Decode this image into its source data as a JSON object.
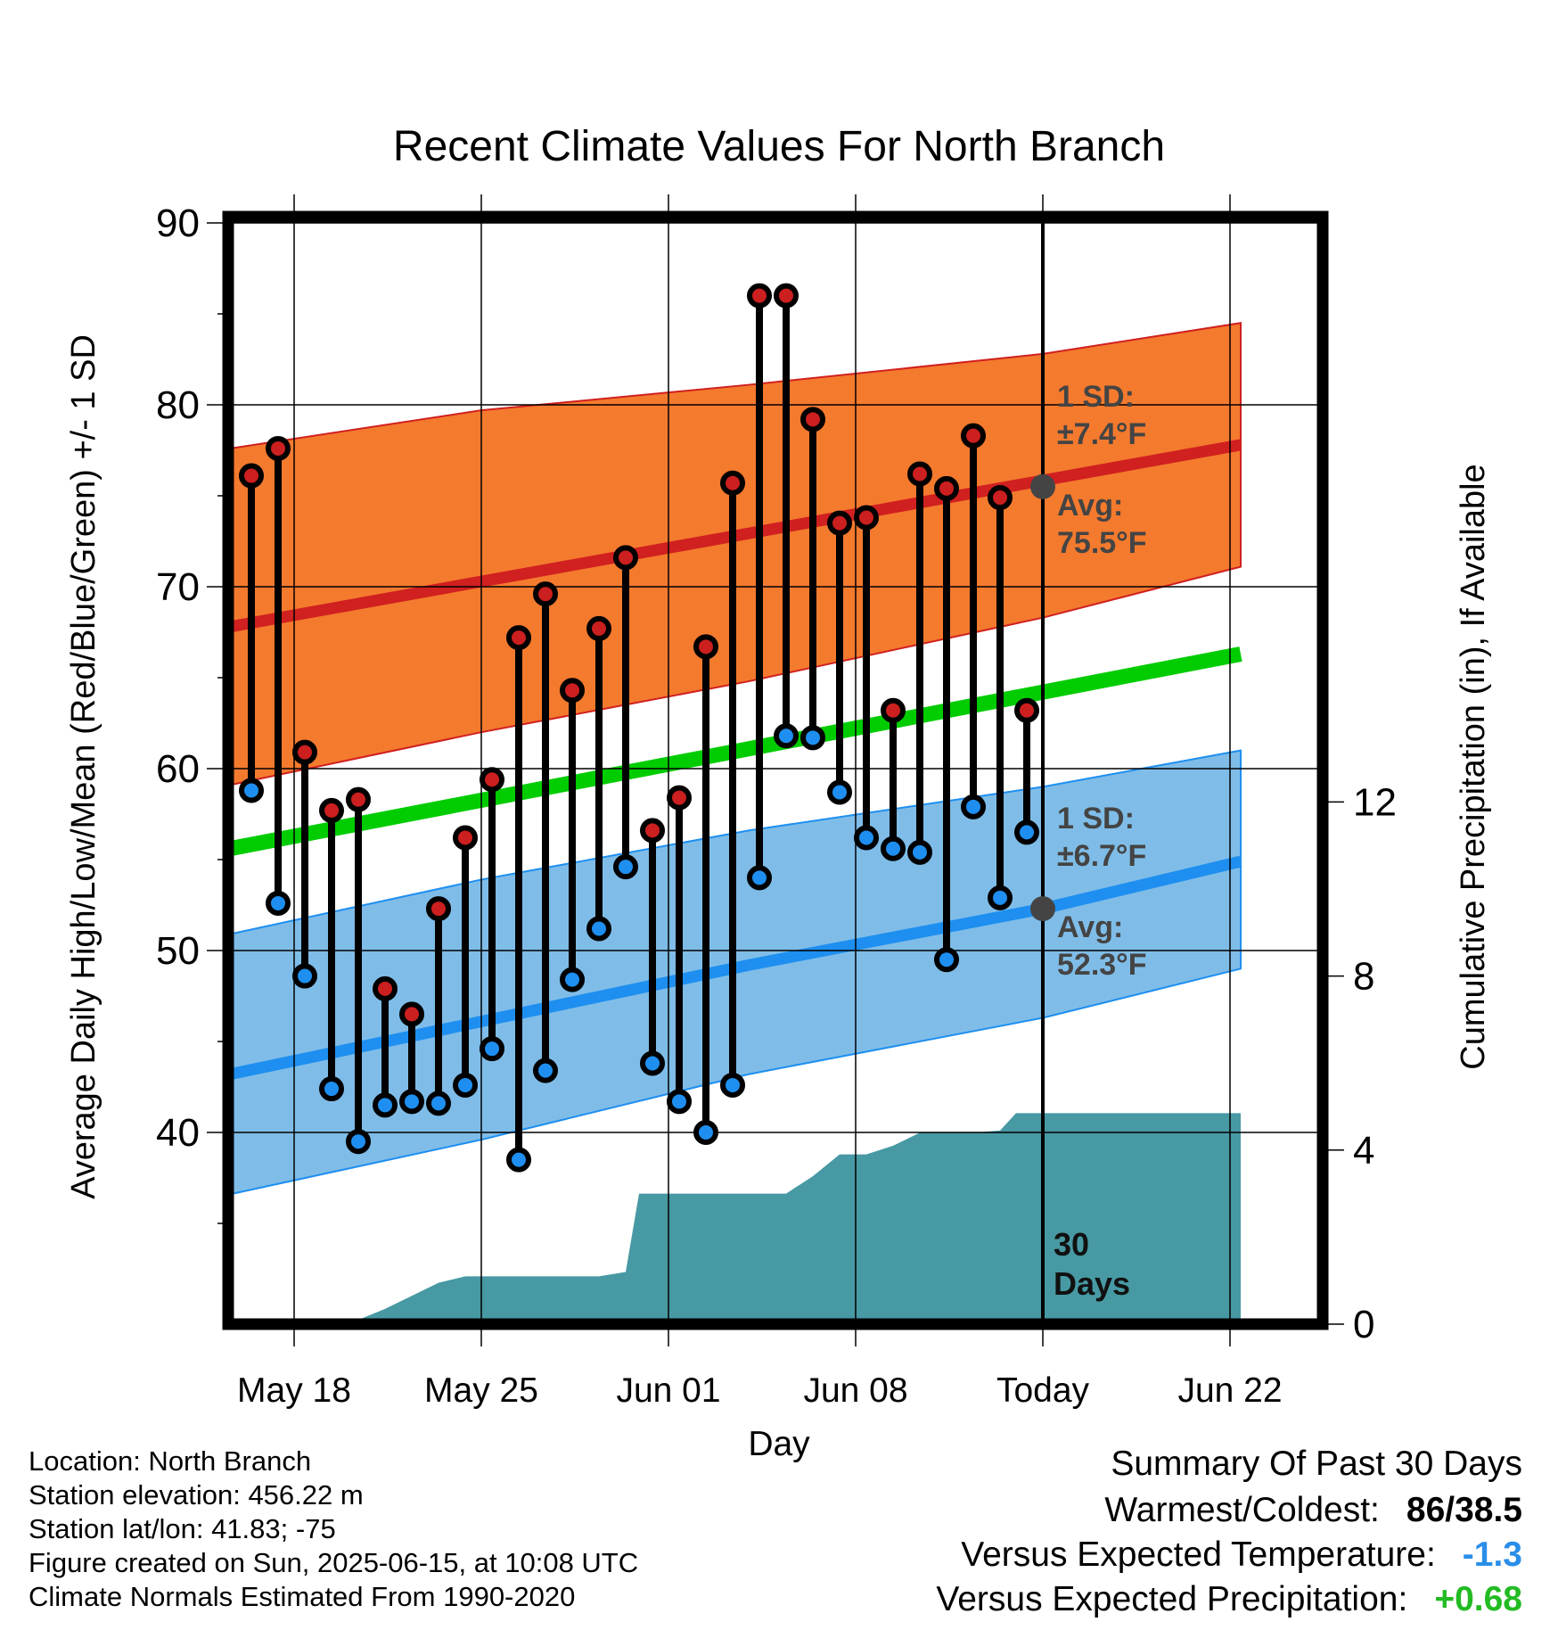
{
  "chart_data": {
    "type": "line",
    "title": "Recent Climate Values For North Branch",
    "xlabel": "Day",
    "ylabel": "Average Daily High/Low/Mean (Red/Blue/Green) +/- 1 SD",
    "y2label": "Cumulative Precipitation (in), If Available",
    "xlim": [
      0,
      38.2
    ],
    "ylim": [
      30.3,
      90.7
    ],
    "y2lim": [
      0,
      24
    ],
    "x_tick_labels": [
      "May 18",
      "May 25",
      "Jun 01",
      "Jun 08",
      "Today",
      "Jun 22"
    ],
    "x_tick_positions": [
      2.8,
      9.8,
      16.8,
      23.8,
      30.8,
      37.8
    ],
    "y_ticks": [
      40,
      50,
      60,
      70,
      80,
      90
    ],
    "y2_ticks": [
      0,
      4,
      8,
      12
    ],
    "grid": true,
    "today_marker": {
      "x": 30.8,
      "label_line1": "30",
      "label_line2": "Days"
    },
    "days": [
      1.2,
      2.2,
      3.2,
      4.2,
      5.2,
      6.2,
      7.2,
      8.2,
      9.2,
      10.2,
      11.2,
      12.2,
      13.2,
      14.2,
      15.2,
      16.2,
      17.2,
      18.2,
      19.2,
      20.2,
      21.2,
      22.2,
      23.2,
      24.2,
      25.2,
      26.2,
      27.2,
      28.2,
      29.2,
      30.2
    ],
    "series": [
      {
        "name": "Observed High",
        "color": "#cc1f1f",
        "values": [
          76.1,
          77.6,
          60.9,
          57.7,
          58.3,
          47.9,
          46.5,
          52.3,
          56.2,
          59.4,
          67.2,
          69.6,
          64.3,
          67.7,
          71.6,
          56.6,
          58.4,
          66.7,
          75.7,
          86.0,
          86.0,
          79.2,
          73.5,
          73.8,
          63.2,
          76.2,
          75.4,
          78.3,
          74.9,
          63.2
        ]
      },
      {
        "name": "Observed Low",
        "color": "#1e8ff0",
        "values": [
          58.8,
          52.6,
          48.6,
          42.4,
          39.5,
          41.5,
          41.7,
          41.6,
          42.6,
          44.6,
          38.5,
          43.4,
          48.4,
          51.2,
          54.6,
          43.8,
          41.7,
          40.0,
          42.6,
          54.0,
          61.8,
          61.7,
          58.7,
          56.2,
          55.6,
          55.4,
          49.5,
          57.9,
          52.9,
          56.5
        ]
      }
    ],
    "normals": {
      "high_avg": [
        [
          0.4,
          67.8
        ],
        [
          38.2,
          77.8
        ]
      ],
      "high_upper": [
        [
          0.4,
          77.6
        ],
        [
          9.8,
          79.7
        ],
        [
          19.8,
          81.1
        ],
        [
          30.8,
          82.8
        ],
        [
          38.2,
          84.5
        ]
      ],
      "high_lower": [
        [
          0.4,
          59.1
        ],
        [
          9.8,
          62.0
        ],
        [
          19.8,
          64.8
        ],
        [
          30.8,
          68.3
        ],
        [
          38.2,
          71.1
        ]
      ],
      "low_avg": [
        [
          0.4,
          43.2
        ],
        [
          9.8,
          46.1
        ],
        [
          19.8,
          49.2
        ],
        [
          30.8,
          52.3
        ],
        [
          38.2,
          54.9
        ]
      ],
      "low_upper": [
        [
          0.4,
          50.9
        ],
        [
          9.8,
          53.9
        ],
        [
          19.8,
          56.6
        ],
        [
          30.8,
          59.0
        ],
        [
          38.2,
          61.0
        ]
      ],
      "low_lower": [
        [
          0.4,
          36.6
        ],
        [
          9.8,
          39.6
        ],
        [
          19.8,
          43.2
        ],
        [
          30.8,
          46.3
        ],
        [
          38.2,
          49.0
        ]
      ],
      "mean": [
        [
          0.4,
          55.6
        ],
        [
          38.2,
          66.3
        ]
      ],
      "colors": {
        "high_band": "#f47a2e",
        "high_avg": "#d0201f",
        "low_band": "#7fbde8",
        "low_avg": "#1e8ff0",
        "mean": "#00cc00"
      }
    },
    "precipitation": {
      "color": "#4799a3",
      "points": [
        [
          0.4,
          0.0
        ],
        [
          1.2,
          0.0
        ],
        [
          3.2,
          0.1
        ],
        [
          5.2,
          0.1
        ],
        [
          6.2,
          0.35
        ],
        [
          8.2,
          0.95
        ],
        [
          9.2,
          1.1
        ],
        [
          13.2,
          1.1
        ],
        [
          14.2,
          1.1
        ],
        [
          15.2,
          1.2
        ],
        [
          15.7,
          3.0
        ],
        [
          16.2,
          3.0
        ],
        [
          20.2,
          3.0
        ],
        [
          21.2,
          3.0
        ],
        [
          22.2,
          3.4
        ],
        [
          23.2,
          3.9
        ],
        [
          24.2,
          3.9
        ],
        [
          25.2,
          4.1
        ],
        [
          26.2,
          4.4
        ],
        [
          28.2,
          4.4
        ],
        [
          29.2,
          4.45
        ],
        [
          29.8,
          4.85
        ],
        [
          38.2,
          4.85
        ]
      ]
    },
    "annotations": {
      "high": {
        "x": 30.8,
        "y": 75.5,
        "sd_label": "1 SD:",
        "sd_value": "±7.4°F",
        "avg_label": "Avg:",
        "avg_value": "75.5°F"
      },
      "low": {
        "x": 30.8,
        "y": 52.3,
        "sd_label": "1 SD:",
        "sd_value": "±6.7°F",
        "avg_label": "Avg:",
        "avg_value": "52.3°F"
      }
    }
  },
  "station_info": {
    "location": "Location: North Branch",
    "elevation": "Station elevation: 456.22 m",
    "latlon": "Station lat/lon: 41.83; -75",
    "created": "Figure created on Sun, 2025-06-15, at 10:08 UTC",
    "normals": "Climate Normals Estimated From 1990-2020"
  },
  "summary": {
    "title": "Summary Of Past 30 Days",
    "warmest_coldest_label": "Warmest/Coldest:",
    "warmest_coldest_value": "86/38.5",
    "temp_label": "Versus Expected Temperature:",
    "temp_value": "-1.3",
    "temp_color": "#2a8ee8",
    "precip_label": "Versus Expected Precipitation:",
    "precip_value": "+0.68",
    "precip_color": "#22bb22"
  }
}
